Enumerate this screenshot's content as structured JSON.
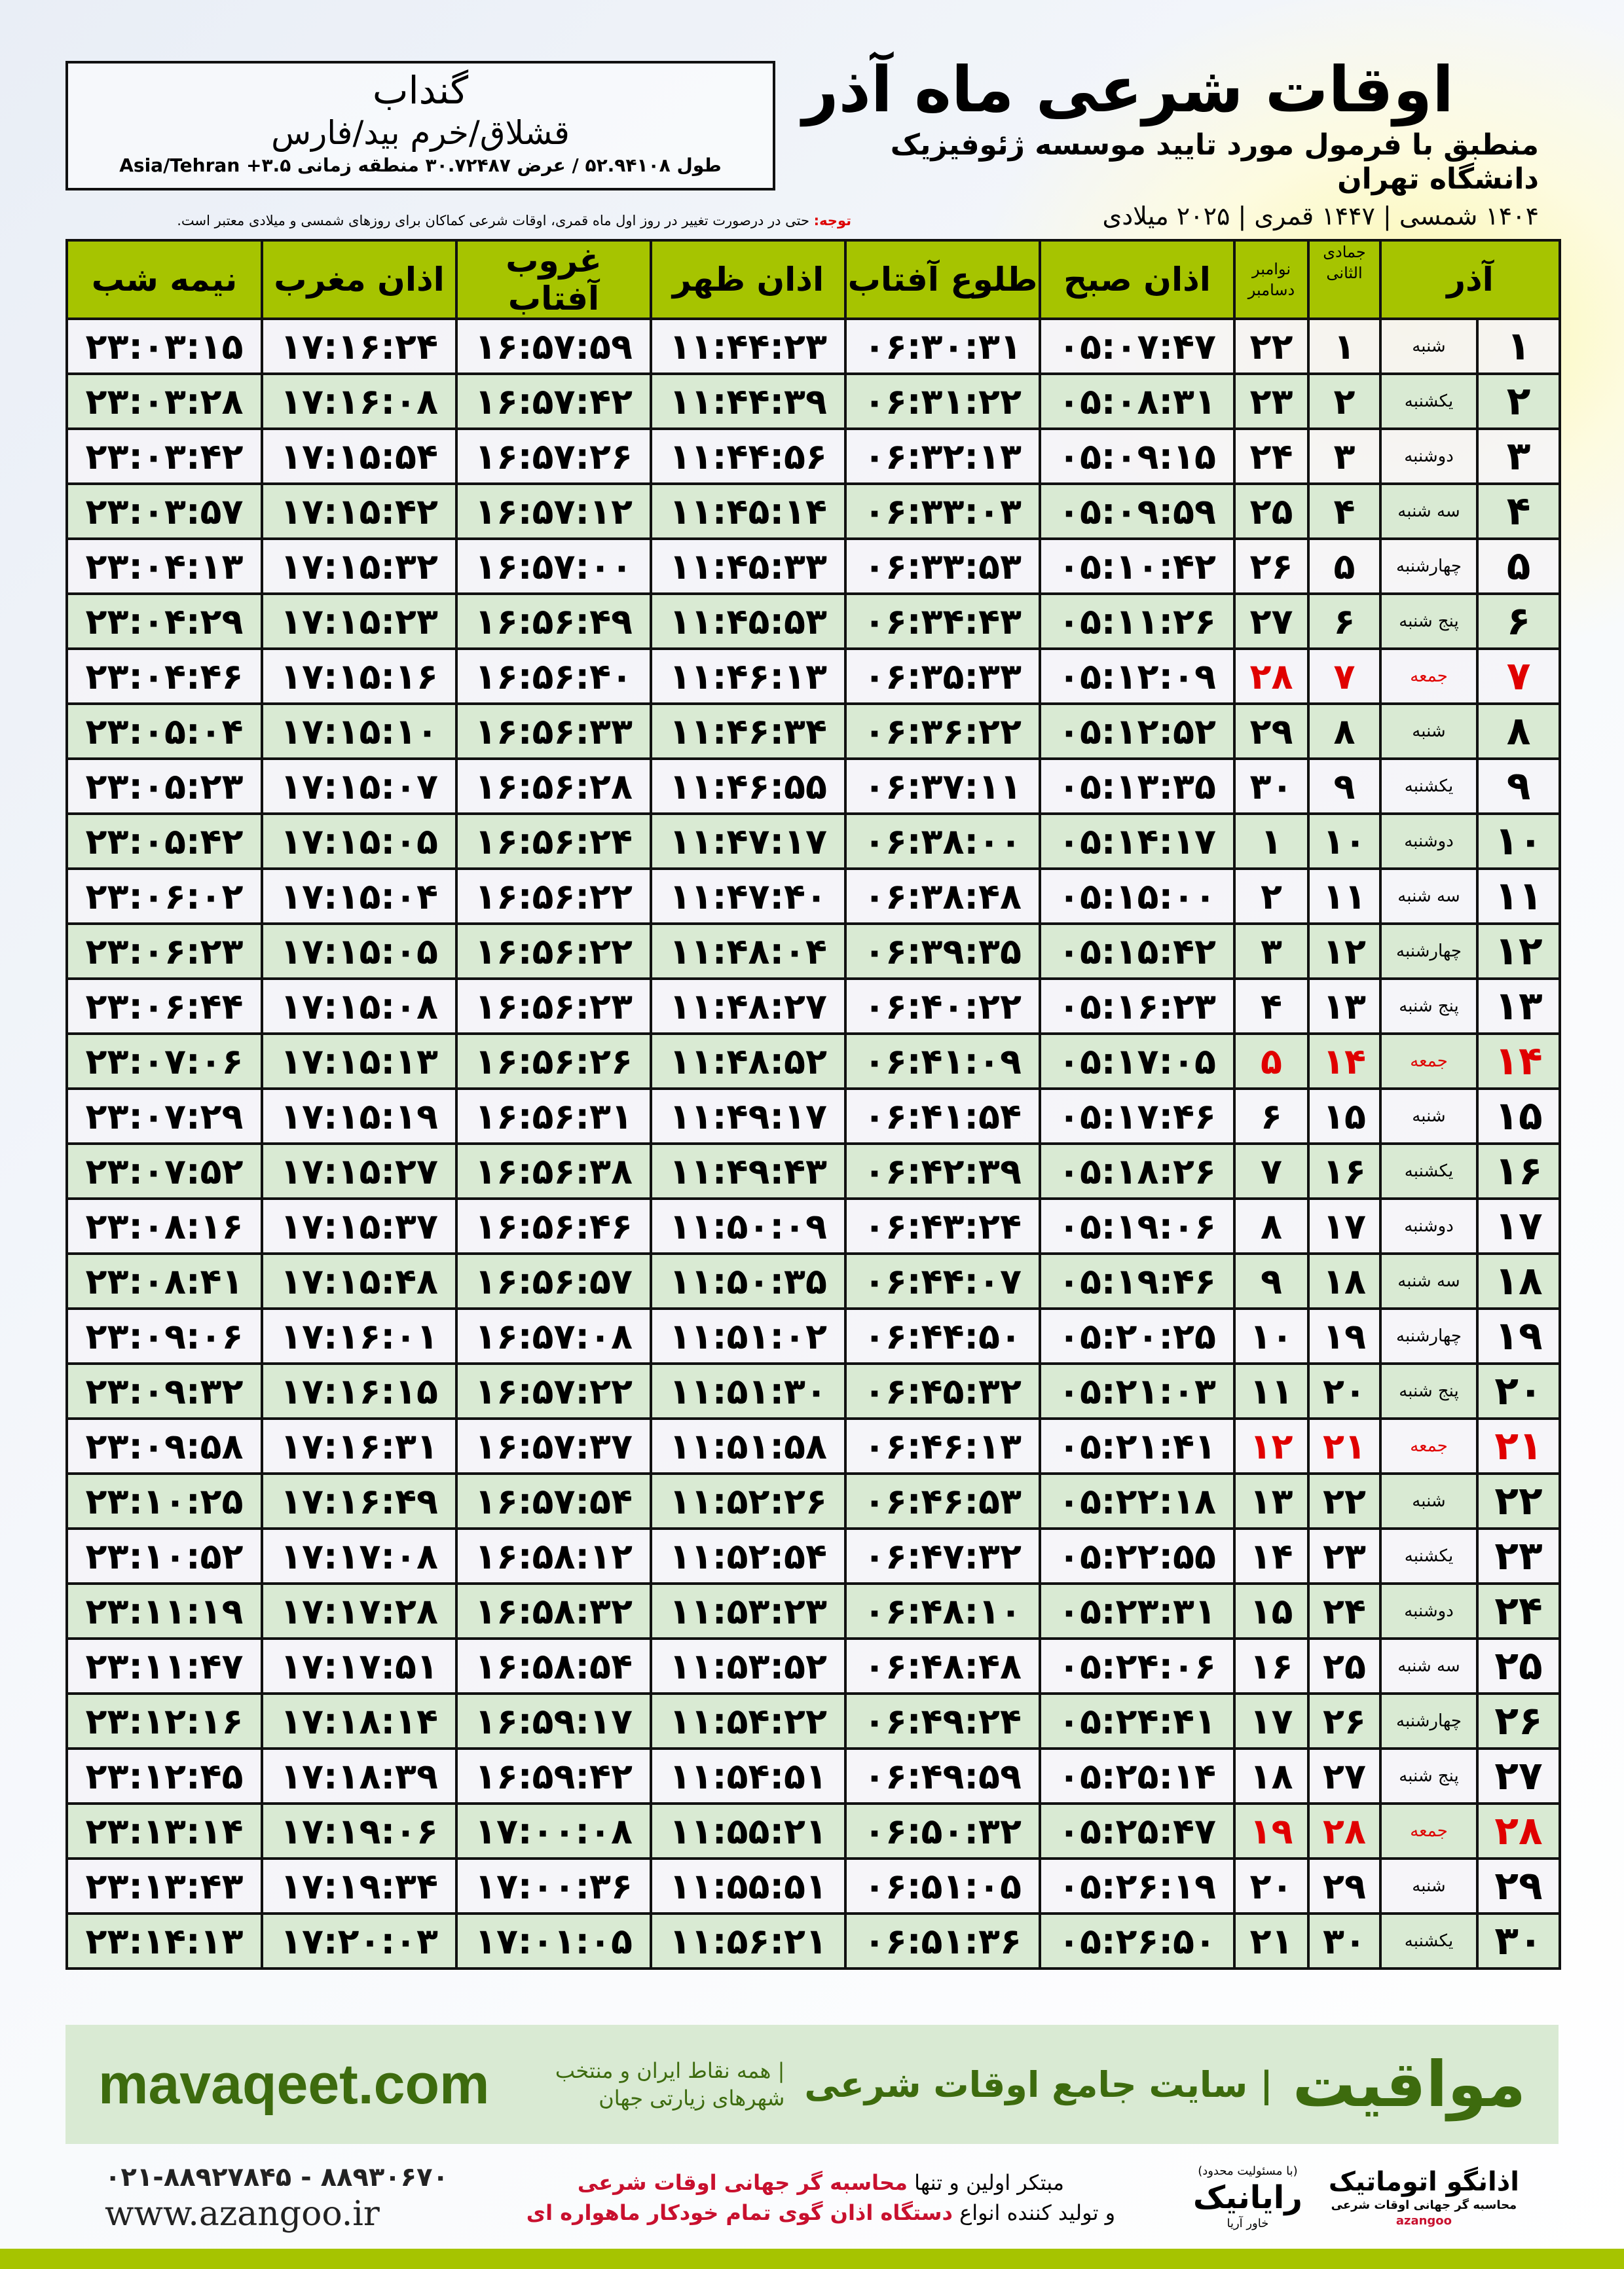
{
  "location": {
    "city": "گنداب",
    "region": "قشلاق/خرم بید/فارس",
    "coords": "طول ۵۲.۹۴۱۰۸ / عرض ۳۰.۷۲۴۸۷ منطقه زمانی ۳.۵+ Asia/Tehran"
  },
  "header": {
    "title": "اوقات شرعی ماه آذر",
    "subtitle": "منطبق با فرمول مورد تایید موسسه ژئوفیزیک دانشگاه تهران",
    "dates": "۱۴۰۴ شمسی | ۱۴۴۷ قمری | ۲۰۲۵ میلادی",
    "note_label": "توجه:",
    "note_text": " حتی در درصورت تغییر در روز اول ماه قمری، اوقات شرعی کماکان برای روزهای شمسی و میلادی معتبر است."
  },
  "colors": {
    "header_green": "#a6c400",
    "row_green": "#d9ead3",
    "friday_red": "#e00000",
    "brand_green": "#3d6b0e"
  },
  "table": {
    "columns": {
      "azar": "آذر",
      "hijri": "جمادی الثانی",
      "gregorian_top": "نوامبر",
      "gregorian_bottom": "دسامبر",
      "fajr": "اذان صبح",
      "sunrise": "طلوع آفتاب",
      "dhuhr": "اذان ظهر",
      "sunset": "غروب آفتاب",
      "maghrib": "اذان مغرب",
      "midnight": "نیمه شب"
    },
    "rows": [
      {
        "day": "۱",
        "weekday": "شنبه",
        "hijri": "۱",
        "greg": "۲۲",
        "fajr": "۰۵:۰۷:۴۷",
        "sunrise": "۰۶:۳۰:۳۱",
        "dhuhr": "۱۱:۴۴:۲۳",
        "sunset": "۱۶:۵۷:۵۹",
        "maghrib": "۱۷:۱۶:۲۴",
        "midnight": "۲۳:۰۳:۱۵"
      },
      {
        "day": "۲",
        "weekday": "یکشنبه",
        "hijri": "۲",
        "greg": "۲۳",
        "fajr": "۰۵:۰۸:۳۱",
        "sunrise": "۰۶:۳۱:۲۲",
        "dhuhr": "۱۱:۴۴:۳۹",
        "sunset": "۱۶:۵۷:۴۲",
        "maghrib": "۱۷:۱۶:۰۸",
        "midnight": "۲۳:۰۳:۲۸"
      },
      {
        "day": "۳",
        "weekday": "دوشنبه",
        "hijri": "۳",
        "greg": "۲۴",
        "fajr": "۰۵:۰۹:۱۵",
        "sunrise": "۰۶:۳۲:۱۳",
        "dhuhr": "۱۱:۴۴:۵۶",
        "sunset": "۱۶:۵۷:۲۶",
        "maghrib": "۱۷:۱۵:۵۴",
        "midnight": "۲۳:۰۳:۴۲"
      },
      {
        "day": "۴",
        "weekday": "سه شنبه",
        "hijri": "۴",
        "greg": "۲۵",
        "fajr": "۰۵:۰۹:۵۹",
        "sunrise": "۰۶:۳۳:۰۳",
        "dhuhr": "۱۱:۴۵:۱۴",
        "sunset": "۱۶:۵۷:۱۲",
        "maghrib": "۱۷:۱۵:۴۲",
        "midnight": "۲۳:۰۳:۵۷"
      },
      {
        "day": "۵",
        "weekday": "چهارشنبه",
        "hijri": "۵",
        "greg": "۲۶",
        "fajr": "۰۵:۱۰:۴۲",
        "sunrise": "۰۶:۳۳:۵۳",
        "dhuhr": "۱۱:۴۵:۳۳",
        "sunset": "۱۶:۵۷:۰۰",
        "maghrib": "۱۷:۱۵:۳۲",
        "midnight": "۲۳:۰۴:۱۳"
      },
      {
        "day": "۶",
        "weekday": "پنج شنبه",
        "hijri": "۶",
        "greg": "۲۷",
        "fajr": "۰۵:۱۱:۲۶",
        "sunrise": "۰۶:۳۴:۴۳",
        "dhuhr": "۱۱:۴۵:۵۳",
        "sunset": "۱۶:۵۶:۴۹",
        "maghrib": "۱۷:۱۵:۲۳",
        "midnight": "۲۳:۰۴:۲۹"
      },
      {
        "day": "۷",
        "weekday": "جمعه",
        "hijri": "۷",
        "greg": "۲۸",
        "fajr": "۰۵:۱۲:۰۹",
        "sunrise": "۰۶:۳۵:۳۳",
        "dhuhr": "۱۱:۴۶:۱۳",
        "sunset": "۱۶:۵۶:۴۰",
        "maghrib": "۱۷:۱۵:۱۶",
        "midnight": "۲۳:۰۴:۴۶"
      },
      {
        "day": "۸",
        "weekday": "شنبه",
        "hijri": "۸",
        "greg": "۲۹",
        "fajr": "۰۵:۱۲:۵۲",
        "sunrise": "۰۶:۳۶:۲۲",
        "dhuhr": "۱۱:۴۶:۳۴",
        "sunset": "۱۶:۵۶:۳۳",
        "maghrib": "۱۷:۱۵:۱۰",
        "midnight": "۲۳:۰۵:۰۴"
      },
      {
        "day": "۹",
        "weekday": "یکشنبه",
        "hijri": "۹",
        "greg": "۳۰",
        "fajr": "۰۵:۱۳:۳۵",
        "sunrise": "۰۶:۳۷:۱۱",
        "dhuhr": "۱۱:۴۶:۵۵",
        "sunset": "۱۶:۵۶:۲۸",
        "maghrib": "۱۷:۱۵:۰۷",
        "midnight": "۲۳:۰۵:۲۳"
      },
      {
        "day": "۱۰",
        "weekday": "دوشنبه",
        "hijri": "۱۰",
        "greg": "۱",
        "fajr": "۰۵:۱۴:۱۷",
        "sunrise": "۰۶:۳۸:۰۰",
        "dhuhr": "۱۱:۴۷:۱۷",
        "sunset": "۱۶:۵۶:۲۴",
        "maghrib": "۱۷:۱۵:۰۵",
        "midnight": "۲۳:۰۵:۴۲"
      },
      {
        "day": "۱۱",
        "weekday": "سه شنبه",
        "hijri": "۱۱",
        "greg": "۲",
        "fajr": "۰۵:۱۵:۰۰",
        "sunrise": "۰۶:۳۸:۴۸",
        "dhuhr": "۱۱:۴۷:۴۰",
        "sunset": "۱۶:۵۶:۲۲",
        "maghrib": "۱۷:۱۵:۰۴",
        "midnight": "۲۳:۰۶:۰۲"
      },
      {
        "day": "۱۲",
        "weekday": "چهارشنبه",
        "hijri": "۱۲",
        "greg": "۳",
        "fajr": "۰۵:۱۵:۴۲",
        "sunrise": "۰۶:۳۹:۳۵",
        "dhuhr": "۱۱:۴۸:۰۴",
        "sunset": "۱۶:۵۶:۲۲",
        "maghrib": "۱۷:۱۵:۰۵",
        "midnight": "۲۳:۰۶:۲۳"
      },
      {
        "day": "۱۳",
        "weekday": "پنج شنبه",
        "hijri": "۱۳",
        "greg": "۴",
        "fajr": "۰۵:۱۶:۲۳",
        "sunrise": "۰۶:۴۰:۲۲",
        "dhuhr": "۱۱:۴۸:۲۷",
        "sunset": "۱۶:۵۶:۲۳",
        "maghrib": "۱۷:۱۵:۰۸",
        "midnight": "۲۳:۰۶:۴۴"
      },
      {
        "day": "۱۴",
        "weekday": "جمعه",
        "hijri": "۱۴",
        "greg": "۵",
        "fajr": "۰۵:۱۷:۰۵",
        "sunrise": "۰۶:۴۱:۰۹",
        "dhuhr": "۱۱:۴۸:۵۲",
        "sunset": "۱۶:۵۶:۲۶",
        "maghrib": "۱۷:۱۵:۱۳",
        "midnight": "۲۳:۰۷:۰۶"
      },
      {
        "day": "۱۵",
        "weekday": "شنبه",
        "hijri": "۱۵",
        "greg": "۶",
        "fajr": "۰۵:۱۷:۴۶",
        "sunrise": "۰۶:۴۱:۵۴",
        "dhuhr": "۱۱:۴۹:۱۷",
        "sunset": "۱۶:۵۶:۳۱",
        "maghrib": "۱۷:۱۵:۱۹",
        "midnight": "۲۳:۰۷:۲۹"
      },
      {
        "day": "۱۶",
        "weekday": "یکشنبه",
        "hijri": "۱۶",
        "greg": "۷",
        "fajr": "۰۵:۱۸:۲۶",
        "sunrise": "۰۶:۴۲:۳۹",
        "dhuhr": "۱۱:۴۹:۴۳",
        "sunset": "۱۶:۵۶:۳۸",
        "maghrib": "۱۷:۱۵:۲۷",
        "midnight": "۲۳:۰۷:۵۲"
      },
      {
        "day": "۱۷",
        "weekday": "دوشنبه",
        "hijri": "۱۷",
        "greg": "۸",
        "fajr": "۰۵:۱۹:۰۶",
        "sunrise": "۰۶:۴۳:۲۴",
        "dhuhr": "۱۱:۵۰:۰۹",
        "sunset": "۱۶:۵۶:۴۶",
        "maghrib": "۱۷:۱۵:۳۷",
        "midnight": "۲۳:۰۸:۱۶"
      },
      {
        "day": "۱۸",
        "weekday": "سه شنبه",
        "hijri": "۱۸",
        "greg": "۹",
        "fajr": "۰۵:۱۹:۴۶",
        "sunrise": "۰۶:۴۴:۰۷",
        "dhuhr": "۱۱:۵۰:۳۵",
        "sunset": "۱۶:۵۶:۵۷",
        "maghrib": "۱۷:۱۵:۴۸",
        "midnight": "۲۳:۰۸:۴۱"
      },
      {
        "day": "۱۹",
        "weekday": "چهارشنبه",
        "hijri": "۱۹",
        "greg": "۱۰",
        "fajr": "۰۵:۲۰:۲۵",
        "sunrise": "۰۶:۴۴:۵۰",
        "dhuhr": "۱۱:۵۱:۰۲",
        "sunset": "۱۶:۵۷:۰۸",
        "maghrib": "۱۷:۱۶:۰۱",
        "midnight": "۲۳:۰۹:۰۶"
      },
      {
        "day": "۲۰",
        "weekday": "پنج شنبه",
        "hijri": "۲۰",
        "greg": "۱۱",
        "fajr": "۰۵:۲۱:۰۳",
        "sunrise": "۰۶:۴۵:۳۲",
        "dhuhr": "۱۱:۵۱:۳۰",
        "sunset": "۱۶:۵۷:۲۲",
        "maghrib": "۱۷:۱۶:۱۵",
        "midnight": "۲۳:۰۹:۳۲"
      },
      {
        "day": "۲۱",
        "weekday": "جمعه",
        "hijri": "۲۱",
        "greg": "۱۲",
        "fajr": "۰۵:۲۱:۴۱",
        "sunrise": "۰۶:۴۶:۱۳",
        "dhuhr": "۱۱:۵۱:۵۸",
        "sunset": "۱۶:۵۷:۳۷",
        "maghrib": "۱۷:۱۶:۳۱",
        "midnight": "۲۳:۰۹:۵۸"
      },
      {
        "day": "۲۲",
        "weekday": "شنبه",
        "hijri": "۲۲",
        "greg": "۱۳",
        "fajr": "۰۵:۲۲:۱۸",
        "sunrise": "۰۶:۴۶:۵۳",
        "dhuhr": "۱۱:۵۲:۲۶",
        "sunset": "۱۶:۵۷:۵۴",
        "maghrib": "۱۷:۱۶:۴۹",
        "midnight": "۲۳:۱۰:۲۵"
      },
      {
        "day": "۲۳",
        "weekday": "یکشنبه",
        "hijri": "۲۳",
        "greg": "۱۴",
        "fajr": "۰۵:۲۲:۵۵",
        "sunrise": "۰۶:۴۷:۳۲",
        "dhuhr": "۱۱:۵۲:۵۴",
        "sunset": "۱۶:۵۸:۱۲",
        "maghrib": "۱۷:۱۷:۰۸",
        "midnight": "۲۳:۱۰:۵۲"
      },
      {
        "day": "۲۴",
        "weekday": "دوشنبه",
        "hijri": "۲۴",
        "greg": "۱۵",
        "fajr": "۰۵:۲۳:۳۱",
        "sunrise": "۰۶:۴۸:۱۰",
        "dhuhr": "۱۱:۵۳:۲۳",
        "sunset": "۱۶:۵۸:۳۲",
        "maghrib": "۱۷:۱۷:۲۸",
        "midnight": "۲۳:۱۱:۱۹"
      },
      {
        "day": "۲۵",
        "weekday": "سه شنبه",
        "hijri": "۲۵",
        "greg": "۱۶",
        "fajr": "۰۵:۲۴:۰۶",
        "sunrise": "۰۶:۴۸:۴۸",
        "dhuhr": "۱۱:۵۳:۵۲",
        "sunset": "۱۶:۵۸:۵۴",
        "maghrib": "۱۷:۱۷:۵۱",
        "midnight": "۲۳:۱۱:۴۷"
      },
      {
        "day": "۲۶",
        "weekday": "چهارشنبه",
        "hijri": "۲۶",
        "greg": "۱۷",
        "fajr": "۰۵:۲۴:۴۱",
        "sunrise": "۰۶:۴۹:۲۴",
        "dhuhr": "۱۱:۵۴:۲۲",
        "sunset": "۱۶:۵۹:۱۷",
        "maghrib": "۱۷:۱۸:۱۴",
        "midnight": "۲۳:۱۲:۱۶"
      },
      {
        "day": "۲۷",
        "weekday": "پنج شنبه",
        "hijri": "۲۷",
        "greg": "۱۸",
        "fajr": "۰۵:۲۵:۱۴",
        "sunrise": "۰۶:۴۹:۵۹",
        "dhuhr": "۱۱:۵۴:۵۱",
        "sunset": "۱۶:۵۹:۴۲",
        "maghrib": "۱۷:۱۸:۳۹",
        "midnight": "۲۳:۱۲:۴۵"
      },
      {
        "day": "۲۸",
        "weekday": "جمعه",
        "hijri": "۲۸",
        "greg": "۱۹",
        "fajr": "۰۵:۲۵:۴۷",
        "sunrise": "۰۶:۵۰:۳۲",
        "dhuhr": "۱۱:۵۵:۲۱",
        "sunset": "۱۷:۰۰:۰۸",
        "maghrib": "۱۷:۱۹:۰۶",
        "midnight": "۲۳:۱۳:۱۴"
      },
      {
        "day": "۲۹",
        "weekday": "شنبه",
        "hijri": "۲۹",
        "greg": "۲۰",
        "fajr": "۰۵:۲۶:۱۹",
        "sunrise": "۰۶:۵۱:۰۵",
        "dhuhr": "۱۱:۵۵:۵۱",
        "sunset": "۱۷:۰۰:۳۶",
        "maghrib": "۱۷:۱۹:۳۴",
        "midnight": "۲۳:۱۳:۴۳"
      },
      {
        "day": "۳۰",
        "weekday": "یکشنبه",
        "hijri": "۳۰",
        "greg": "۲۱",
        "fajr": "۰۵:۲۶:۵۰",
        "sunrise": "۰۶:۵۱:۳۶",
        "dhuhr": "۱۱:۵۶:۲۱",
        "sunset": "۱۷:۰۱:۰۵",
        "maghrib": "۱۷:۲۰:۰۳",
        "midnight": "۲۳:۱۴:۱۳"
      }
    ]
  },
  "footer": {
    "site": "mavaqeet.com",
    "brand_logo": "مواقیت",
    "brand": "| سایت جامع اوقات شرعی",
    "tagline": "| همه نقاط ایران و منتخب شهرهای زیارتی جهان",
    "phones": "۰۲۱-۸۸۹۲۷۸۴۵ - ۸۸۹۳۰۶۷۰",
    "web": "www.azangoo.ir",
    "promo_1a": "مبتکر اولین و تنها ",
    "promo_1b": "محاسبه گر جهانی اوقات شرعی",
    "promo_2a": "و تولید کننده انواع ",
    "promo_2b": "دستگاه اذان گوی تمام خودکار ماهواره ای",
    "rayanik_small": "(با مسئولیت محدود)",
    "rayanik": "رایانیک",
    "rayanik_sub": "خاور آریا",
    "azangoo": "اذانگو اتوماتیک",
    "azangoo_sub": "محاسبه گر جهانی اوقات شرعی",
    "azangoo_en": "azangoo"
  }
}
